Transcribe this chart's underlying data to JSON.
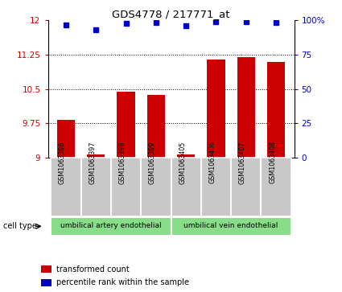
{
  "title": "GDS4778 / 217771_at",
  "samples": [
    "GSM1063396",
    "GSM1063397",
    "GSM1063398",
    "GSM1063399",
    "GSM1063405",
    "GSM1063406",
    "GSM1063407",
    "GSM1063408"
  ],
  "bar_values": [
    9.82,
    9.07,
    10.45,
    10.38,
    9.07,
    11.15,
    11.2,
    11.1
  ],
  "percentile_values": [
    97,
    93,
    98,
    98.5,
    96,
    99,
    99,
    98.5
  ],
  "cell_types": [
    {
      "label": "umbilical artery endothelial",
      "start": 0,
      "end": 4
    },
    {
      "label": "umbilical vein endothelial",
      "start": 4,
      "end": 8
    }
  ],
  "ylim_left": [
    9,
    12
  ],
  "ylim_right": [
    0,
    100
  ],
  "yticks_left": [
    9,
    9.75,
    10.5,
    11.25,
    12
  ],
  "yticks_right": [
    0,
    25,
    50,
    75,
    100
  ],
  "bar_color": "#cc0000",
  "dot_color": "#0000cc",
  "tick_bg": "#c8c8c8",
  "cell_type_bg": "#88dd88",
  "legend_text_red": "transformed count",
  "legend_text_blue": "percentile rank within the sample",
  "cell_type_label": "cell type"
}
